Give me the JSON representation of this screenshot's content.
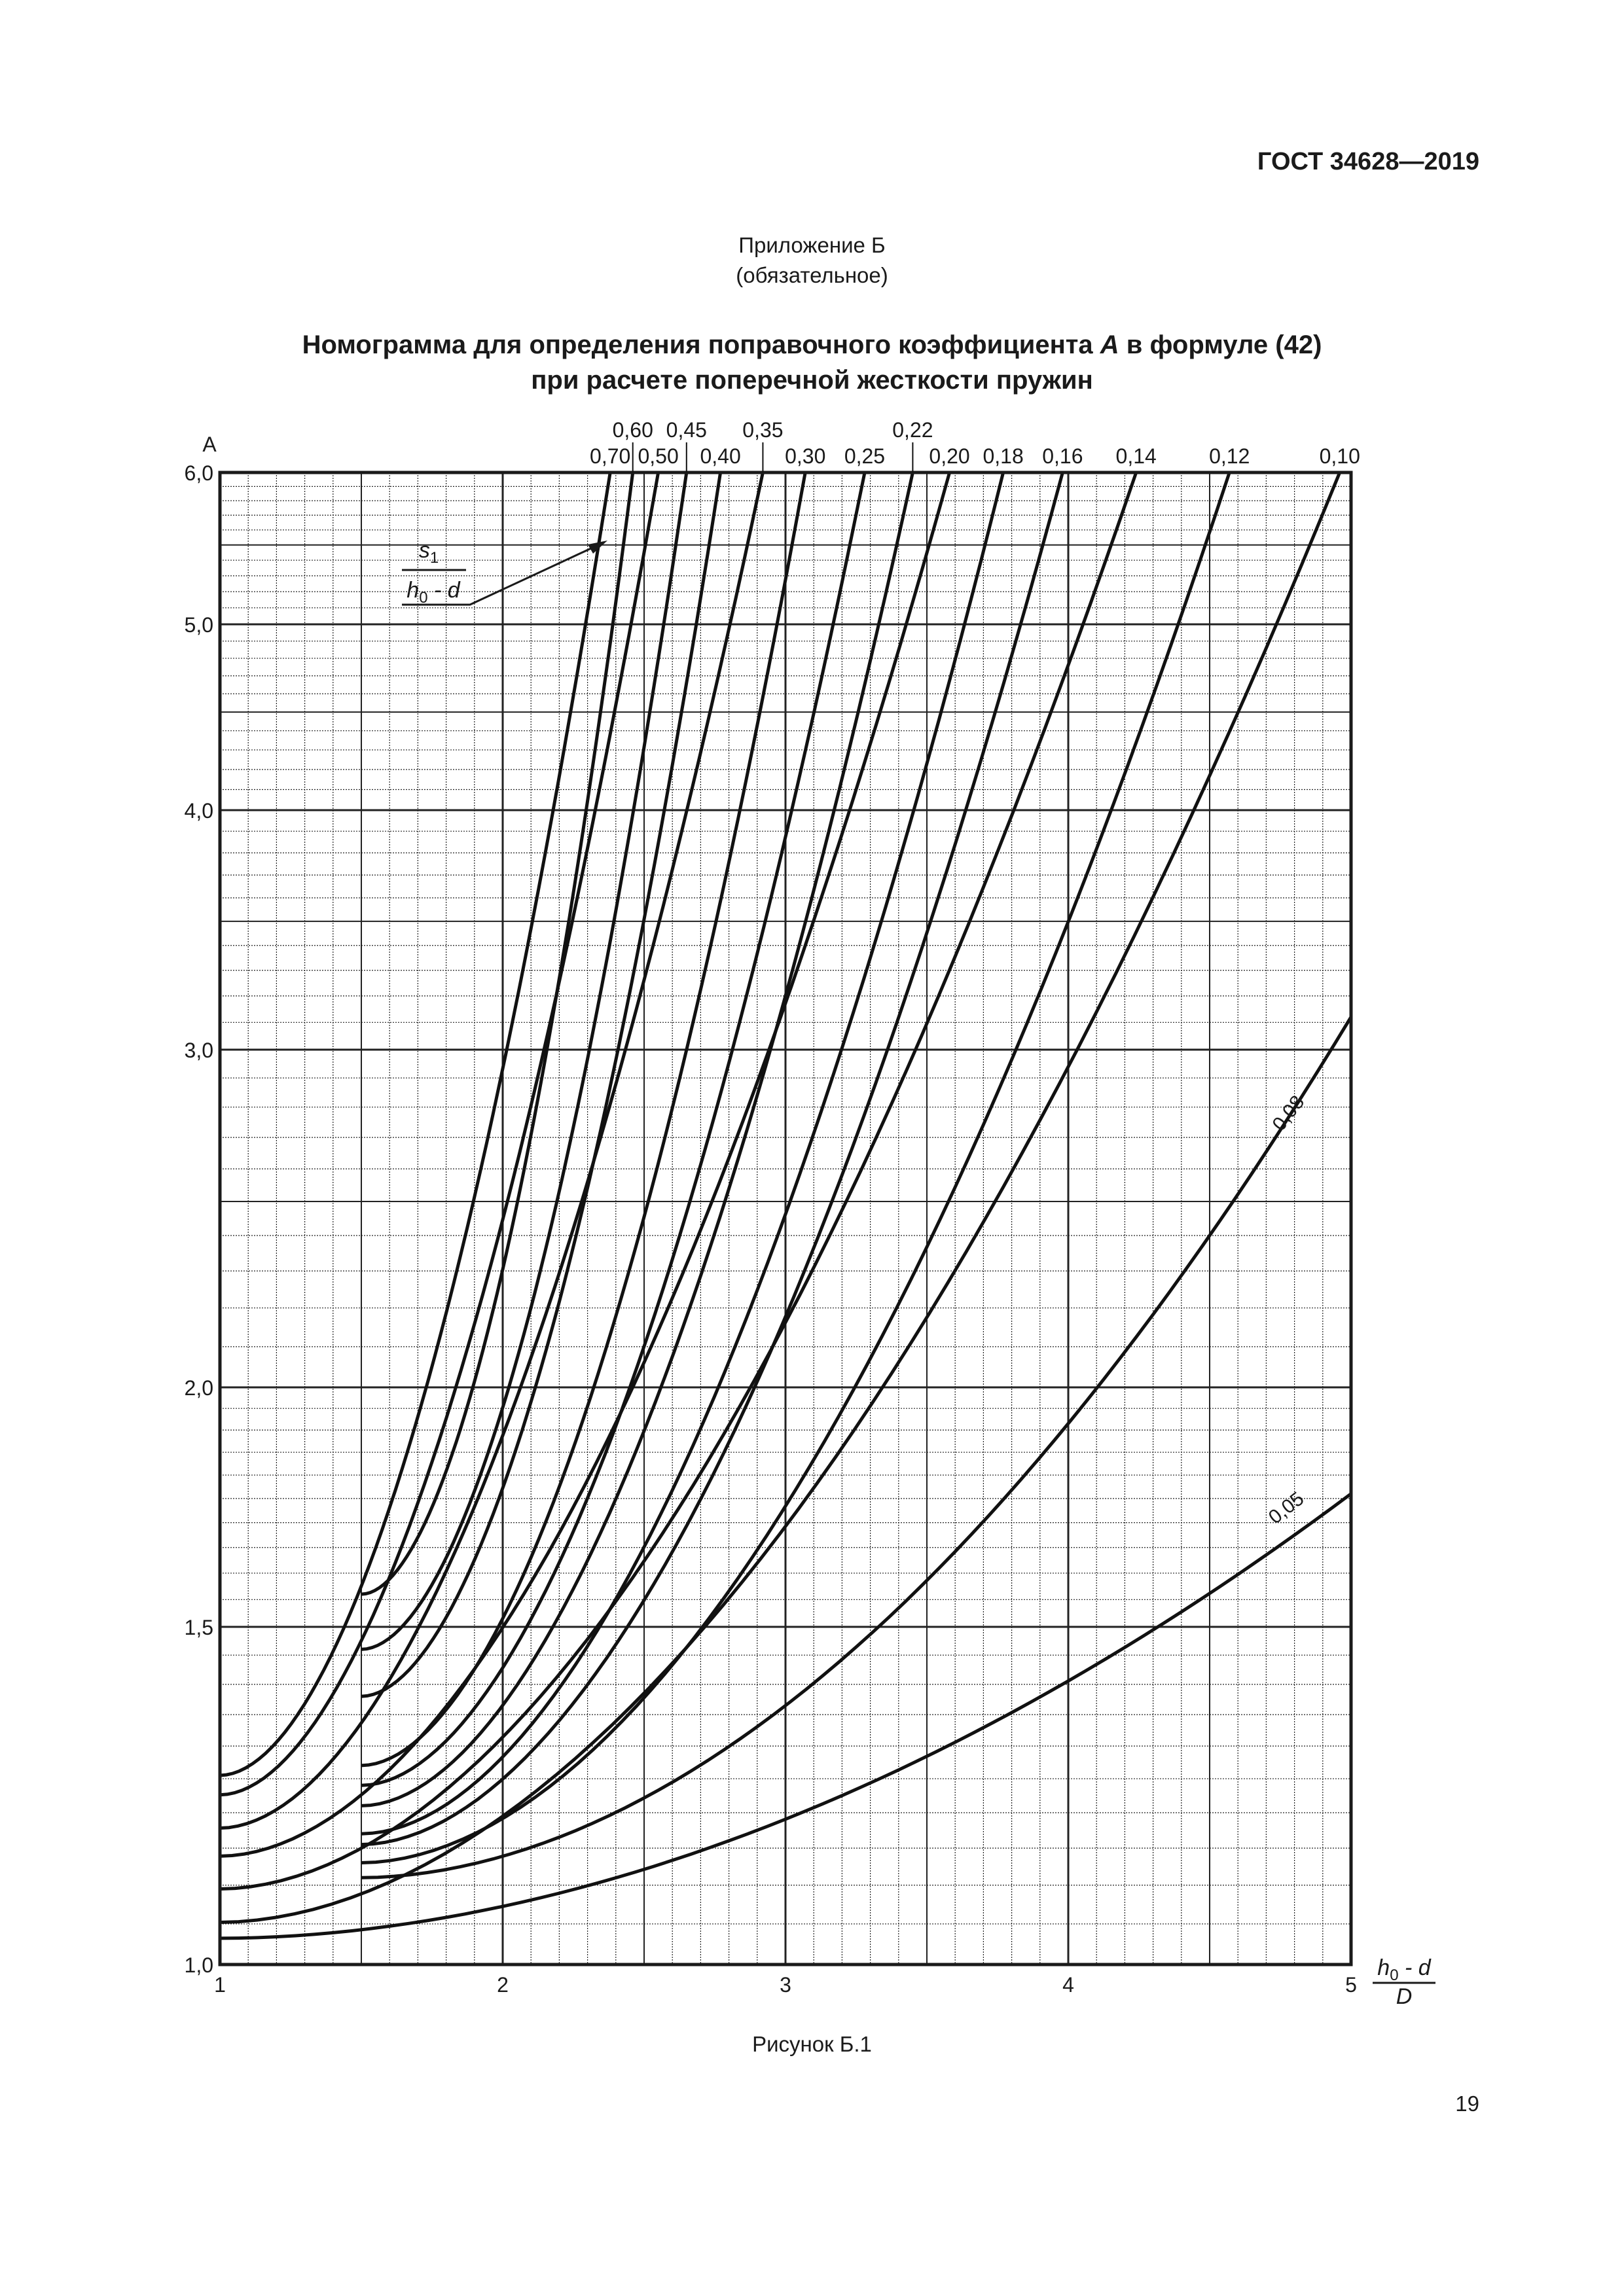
{
  "header": {
    "standard_code": "ГОСТ 34628—2019"
  },
  "appendix": {
    "title": "Приложение Б",
    "status": "(обязательное)"
  },
  "figure_title": {
    "line1_before": "Номограмма для определения поправочного коэффициента ",
    "line1_symbol": "A",
    "line1_after": " в формуле (42)",
    "line2": "при расчете поперечной жесткости пружин"
  },
  "caption": "Рисунок Б.1",
  "page_number": "19",
  "chart_data": {
    "type": "line",
    "title": "Номограмма для определения поправочного коэффициента A в формуле (42) при расчете поперечной жесткости пружин",
    "xlabel": "(h0 - d) / D",
    "xlabel_parts": {
      "numerator": "h",
      "numerator_sub": "0",
      "numerator_rest": " - d",
      "denominator": "D"
    },
    "ylabel": "A",
    "xlim": [
      1,
      5
    ],
    "ylim": [
      1.0,
      6.0
    ],
    "y_scale": "log",
    "grid": true,
    "x_ticks": [
      "1",
      "2",
      "3",
      "4",
      "5"
    ],
    "y_ticks": [
      {
        "value": 1.0,
        "label": "1,0"
      },
      {
        "value": 1.5,
        "label": "1,5"
      },
      {
        "value": 2.0,
        "label": "2,0"
      },
      {
        "value": 3.0,
        "label": "3,0"
      },
      {
        "value": 4.0,
        "label": "4,0"
      },
      {
        "value": 5.0,
        "label": "5,0"
      },
      {
        "value": 6.0,
        "label": "6,0"
      }
    ],
    "parameter_label": {
      "numerator": "s",
      "numerator_sub": "1",
      "denominator": "h",
      "denominator_sub": "0",
      "denominator_rest": " - d"
    },
    "series": [
      {
        "name": "0,70",
        "label_row": "lower",
        "x_start": 1.0,
        "x_top": 2.38,
        "a_start": 1.255
      },
      {
        "name": "0,60",
        "label_row": "upper",
        "x_start": 1.5,
        "x_top": 2.46,
        "a_start": 1.56
      },
      {
        "name": "0,50",
        "label_row": "lower",
        "x_start": 1.0,
        "x_top": 2.55,
        "a_start": 1.226
      },
      {
        "name": "0,45",
        "label_row": "upper",
        "x_start": 1.5,
        "x_top": 2.65,
        "a_start": 1.46
      },
      {
        "name": "0,40",
        "label_row": "lower",
        "x_start": 1.5,
        "x_top": 2.77,
        "a_start": 1.38
      },
      {
        "name": "0,35",
        "label_row": "upper",
        "x_start": 1.0,
        "x_top": 2.92,
        "a_start": 1.178
      },
      {
        "name": "0,30",
        "label_row": "lower",
        "x_start": 1.5,
        "x_top": 3.07,
        "a_start": 1.27
      },
      {
        "name": "0,25",
        "label_row": "lower",
        "x_start": 1.5,
        "x_top": 3.28,
        "a_start": 1.24
      },
      {
        "name": "0,22",
        "label_row": "upper",
        "x_start": 1.5,
        "x_top": 3.45,
        "a_start": 1.21
      },
      {
        "name": "0,20",
        "label_row": "lower",
        "x_start": 1.0,
        "x_top": 3.58,
        "a_start": 1.139
      },
      {
        "name": "0,18",
        "label_row": "lower",
        "x_start": 1.5,
        "x_top": 3.77,
        "a_start": 1.17
      },
      {
        "name": "0,16",
        "label_row": "lower",
        "x_start": 1.5,
        "x_top": 3.98,
        "a_start": 1.155
      },
      {
        "name": "0,14",
        "label_row": "lower",
        "x_start": 1.0,
        "x_top": 4.24,
        "a_start": 1.095
      },
      {
        "name": "0,12",
        "label_row": "lower",
        "x_start": 1.5,
        "x_top": 4.57,
        "a_start": 1.13
      },
      {
        "name": "0,10",
        "label_row": "lower",
        "x_start": 1.0,
        "x_top": 4.96,
        "a_start": 1.052
      },
      {
        "name": "0,08",
        "label_row": "inline",
        "x_start": 1.5,
        "x_end": 5.0,
        "a_start": 1.11,
        "a_end": 3.12
      },
      {
        "name": "0,05",
        "label_row": "inline",
        "x_start": 1.0,
        "x_end": 5.0,
        "a_start": 1.032,
        "a_end": 1.76
      }
    ],
    "sample_points": {
      "0,05": [
        [
          1.0,
          1.032
        ],
        [
          2.0,
          1.12
        ],
        [
          3.0,
          1.25
        ],
        [
          4.0,
          1.44
        ],
        [
          5.0,
          1.76
        ]
      ],
      "0,08": [
        [
          1.5,
          1.11
        ],
        [
          2.0,
          1.16
        ],
        [
          3.0,
          1.38
        ],
        [
          4.0,
          1.8
        ],
        [
          4.5,
          2.25
        ],
        [
          5.0,
          3.12
        ]
      ],
      "0,10": [
        [
          1.0,
          1.052
        ],
        [
          2.0,
          1.22
        ],
        [
          3.0,
          1.6
        ],
        [
          4.0,
          2.5
        ],
        [
          4.5,
          3.5
        ],
        [
          4.96,
          6.0
        ]
      ],
      "0,70": [
        [
          1.0,
          1.255
        ],
        [
          1.5,
          1.56
        ],
        [
          2.0,
          2.6
        ],
        [
          2.2,
          3.6
        ],
        [
          2.38,
          6.0
        ]
      ]
    }
  }
}
